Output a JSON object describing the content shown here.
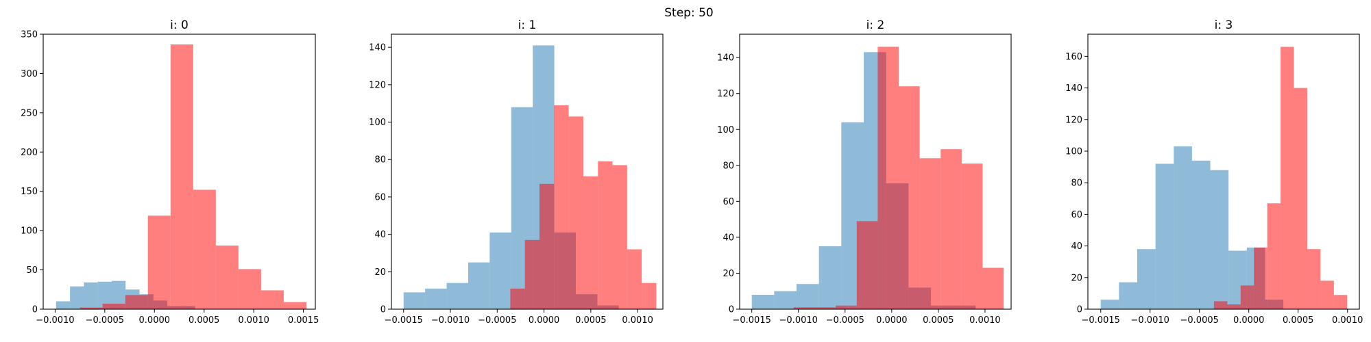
{
  "figure": {
    "suptitle": "Step: 50"
  },
  "chart_data": [
    {
      "type": "bar",
      "title": "i: 0",
      "xlabel": "",
      "ylabel": "",
      "xlim": [
        -0.00112,
        0.00162
      ],
      "ylim": [
        0,
        350
      ],
      "xticks": [
        -0.001,
        -0.0005,
        0.0,
        0.0005,
        0.001,
        0.0015
      ],
      "xtick_labels": [
        "−0.0010",
        "−0.0005",
        "0.0000",
        "0.0005",
        "0.0010",
        "0.0015"
      ],
      "yticks": [
        0,
        50,
        100,
        150,
        200,
        250,
        300,
        350
      ],
      "ytick_labels": [
        "0",
        "50",
        "100",
        "150",
        "200",
        "250",
        "300",
        "350"
      ],
      "series": [
        {
          "color": "#1f77b4",
          "opacity": 0.5,
          "bin_edges": [
            -0.00099,
            -0.00085,
            -0.00071,
            -0.00057,
            -0.00043,
            -0.00029,
            -0.00015,
            -1e-05,
            0.00013,
            0.00027,
            0.00041
          ],
          "counts": [
            10,
            29,
            34,
            35,
            36,
            25,
            19,
            11,
            4,
            4
          ]
        },
        {
          "color": "#ff0000",
          "opacity": 0.5,
          "bin_edges": [
            -0.00075,
            -0.000522,
            -0.000294,
            -6.6e-05,
            0.000162,
            0.00039,
            0.000618,
            0.000846,
            0.001074,
            0.001302,
            0.00153
          ],
          "counts": [
            2,
            7,
            18,
            119,
            337,
            152,
            81,
            51,
            24,
            9
          ]
        }
      ]
    },
    {
      "type": "bar",
      "title": "i: 1",
      "xlabel": "",
      "ylabel": "",
      "xlim": [
        -0.00163,
        0.00127
      ],
      "ylim": [
        0,
        147
      ],
      "xticks": [
        -0.0015,
        -0.001,
        -0.0005,
        0.0,
        0.0005,
        0.001
      ],
      "xtick_labels": [
        "−0.0015",
        "−0.0010",
        "−0.0005",
        "0.0000",
        "0.0005",
        "0.0010"
      ],
      "yticks": [
        0,
        20,
        40,
        60,
        80,
        100,
        120,
        140
      ],
      "ytick_labels": [
        "0",
        "20",
        "40",
        "60",
        "80",
        "100",
        "120",
        "140"
      ],
      "series": [
        {
          "color": "#1f77b4",
          "opacity": 0.5,
          "bin_edges": [
            -0.0015,
            -0.00127,
            -0.00104,
            -0.00081,
            -0.00058,
            -0.00035,
            -0.00012,
            0.00011,
            0.00034,
            0.00057,
            0.0008
          ],
          "counts": [
            9,
            11,
            14,
            25,
            41,
            108,
            141,
            41,
            8,
            2
          ]
        },
        {
          "color": "#ff0000",
          "opacity": 0.5,
          "bin_edges": [
            -0.00036,
            -0.000204,
            -4.8e-05,
            0.000108,
            0.000264,
            0.00042,
            0.000576,
            0.000732,
            0.000888,
            0.001044,
            0.0012
          ],
          "counts": [
            11,
            37,
            67,
            109,
            103,
            71,
            79,
            77,
            32,
            14
          ]
        }
      ]
    },
    {
      "type": "bar",
      "title": "i: 2",
      "xlabel": "",
      "ylabel": "",
      "xlim": [
        -0.00163,
        0.00128
      ],
      "ylim": [
        0,
        153
      ],
      "xticks": [
        -0.0015,
        -0.001,
        -0.0005,
        0.0,
        0.0005,
        0.001
      ],
      "xtick_labels": [
        "−0.0015",
        "−0.0010",
        "−0.0005",
        "0.0000",
        "0.0005",
        "0.0010"
      ],
      "yticks": [
        0,
        20,
        40,
        60,
        80,
        100,
        120,
        140
      ],
      "ytick_labels": [
        "0",
        "20",
        "40",
        "60",
        "80",
        "100",
        "120",
        "140"
      ],
      "series": [
        {
          "color": "#1f77b4",
          "opacity": 0.5,
          "bin_edges": [
            -0.0015,
            -0.00126,
            -0.00102,
            -0.00078,
            -0.00054,
            -0.0003,
            -6e-05,
            0.00018,
            0.00042,
            0.00066,
            0.0009
          ],
          "counts": [
            8,
            10,
            14,
            35,
            104,
            143,
            70,
            12,
            2,
            2
          ]
        },
        {
          "color": "#ff0000",
          "opacity": 0.5,
          "bin_edges": [
            -0.00105,
            -0.000825,
            -0.0006,
            -0.000375,
            -0.00015,
            7.5e-05,
            0.0003,
            0.000525,
            0.00075,
            0.000975,
            0.0012
          ],
          "counts": [
            1,
            1,
            2,
            49,
            146,
            124,
            84,
            89,
            81,
            23
          ]
        }
      ]
    },
    {
      "type": "bar",
      "title": "i: 3",
      "xlabel": "",
      "ylabel": "",
      "xlim": [
        -0.00163,
        0.00112
      ],
      "ylim": [
        0,
        174
      ],
      "xticks": [
        -0.0015,
        -0.001,
        -0.0005,
        0.0,
        0.0005,
        0.001
      ],
      "xtick_labels": [
        "−0.0015",
        "−0.0010",
        "−0.0005",
        "0.0000",
        "0.0005",
        "0.0010"
      ],
      "yticks": [
        0,
        20,
        40,
        60,
        80,
        100,
        120,
        140,
        160
      ],
      "ytick_labels": [
        "0",
        "20",
        "40",
        "60",
        "80",
        "100",
        "120",
        "140",
        "160"
      ],
      "series": [
        {
          "color": "#1f77b4",
          "opacity": 0.5,
          "bin_edges": [
            -0.0015,
            -0.001315,
            -0.00113,
            -0.000945,
            -0.00076,
            -0.000575,
            -0.00039,
            -0.000205,
            -2e-05,
            0.000165,
            0.00035
          ],
          "counts": [
            6,
            17,
            38,
            92,
            103,
            94,
            88,
            37,
            39,
            6
          ]
        },
        {
          "color": "#ff0000",
          "opacity": 0.5,
          "bin_edges": [
            -0.000353,
            -0.000218,
            -8.3e-05,
            5.2e-05,
            0.000187,
            0.000322,
            0.000457,
            0.000592,
            0.000727,
            0.000862,
            0.000997
          ],
          "counts": [
            5,
            3,
            15,
            39,
            67,
            166,
            140,
            38,
            18,
            9
          ]
        }
      ]
    }
  ]
}
